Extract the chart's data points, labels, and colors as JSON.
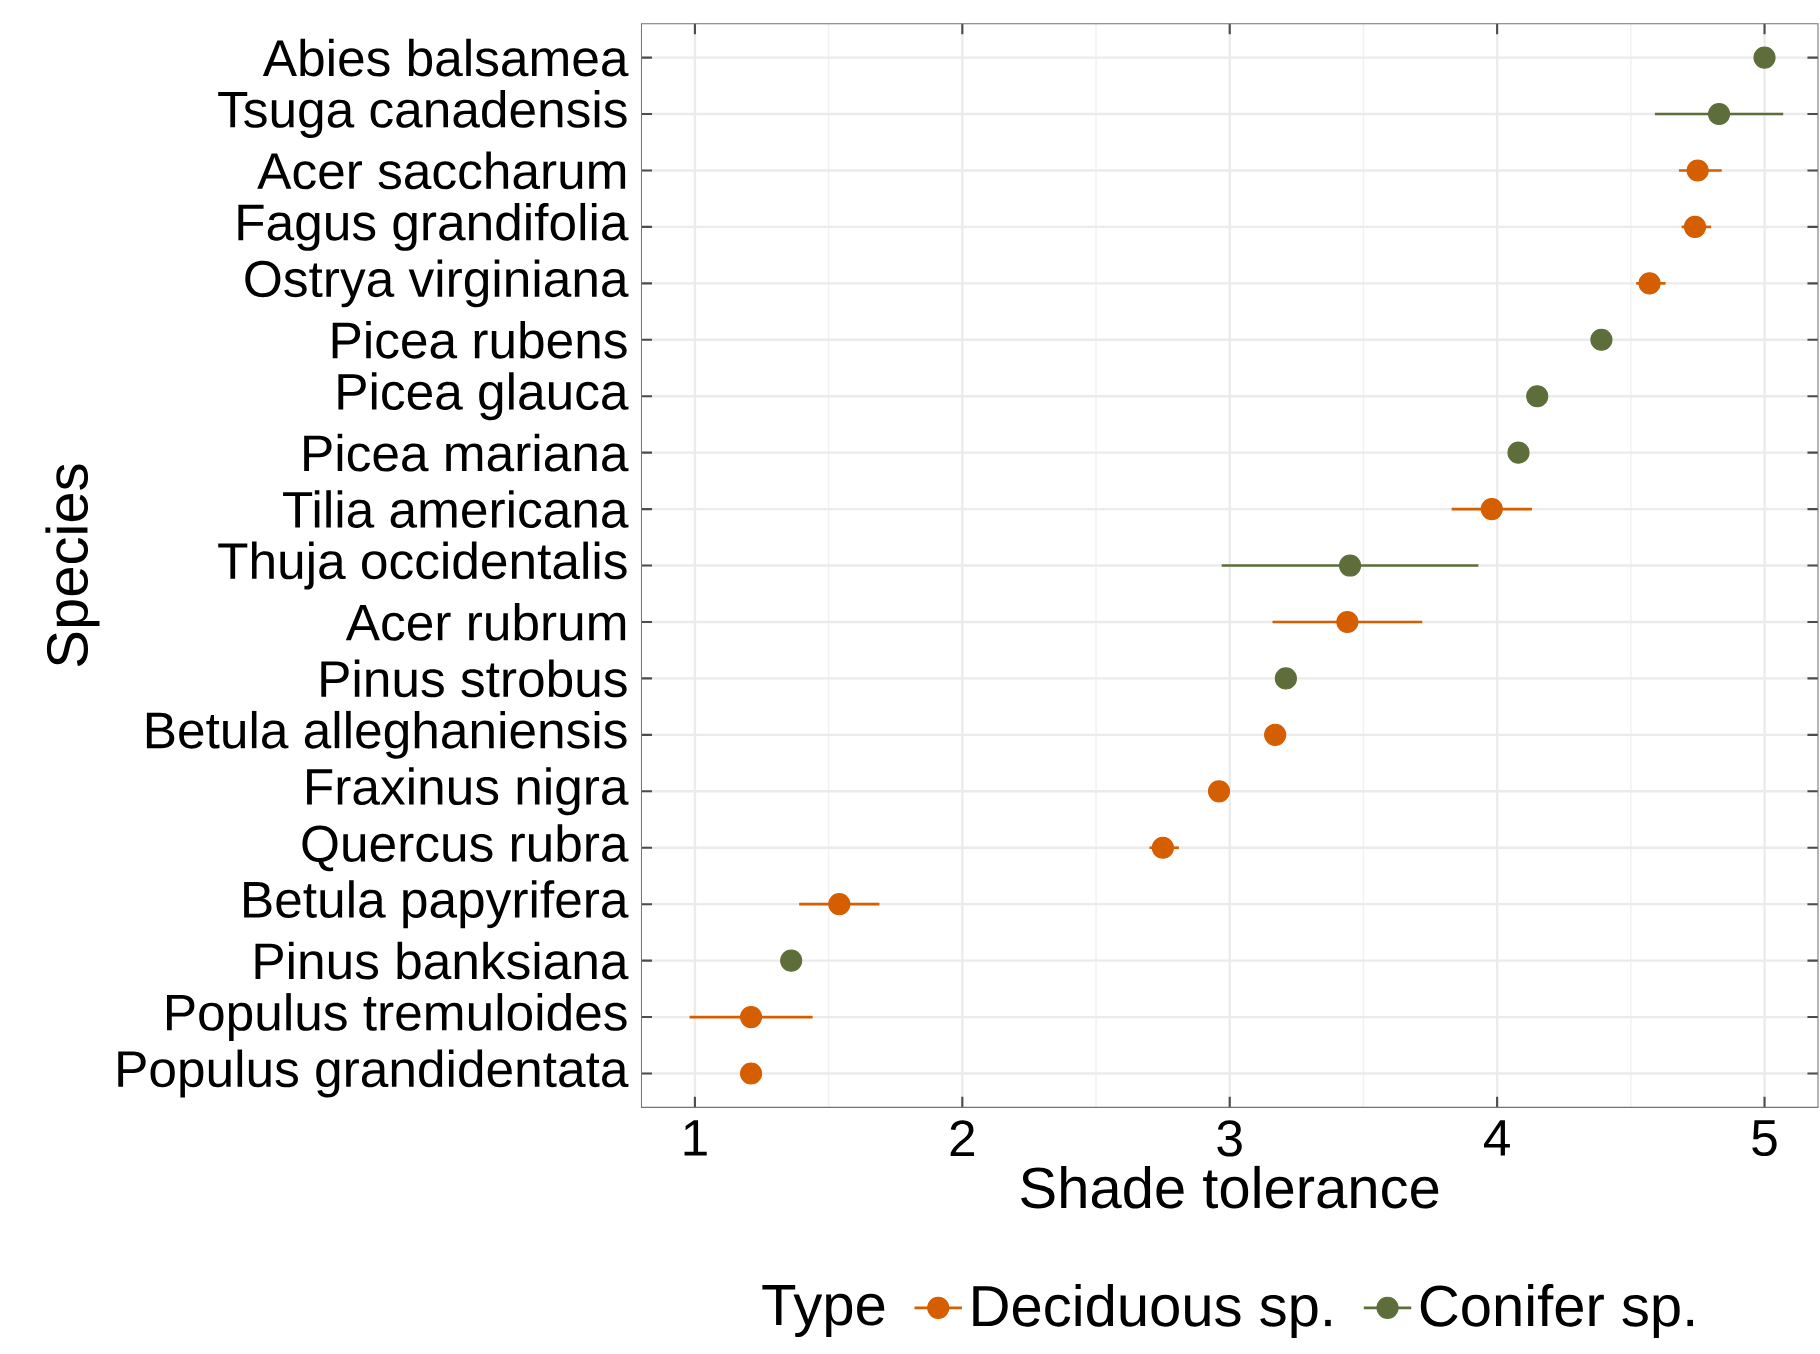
{
  "chart_data": {
    "type": "scatter",
    "orientation": "horizontal",
    "xlabel": "Shade tolerance",
    "ylabel": "Species",
    "legend_title": "Type",
    "legend": "bottom",
    "grid": true,
    "marker": "circle",
    "categories": [
      "Abies balsamea",
      "Tsuga canadensis",
      "Acer saccharum",
      "Fagus grandifolia",
      "Ostrya virginiana",
      "Picea rubens",
      "Picea glauca",
      "Picea mariana",
      "Tilia americana",
      "Thuja occidentalis",
      "Acer rubrum",
      "Pinus strobus",
      "Betula alleghaniensis",
      "Fraxinus nigra",
      "Quercus rubra",
      "Betula papyrifera",
      "Pinus banksiana",
      "Populus tremuloides",
      "Populus grandidentata"
    ],
    "xlim": [
      0.8,
      5.2
    ],
    "xticks": [
      1,
      2,
      3,
      4,
      5
    ],
    "series": [
      {
        "name": "Deciduous sp.",
        "color": "#d55e00",
        "values": [
          null,
          null,
          4.75,
          4.74,
          4.57,
          null,
          null,
          null,
          3.98,
          null,
          3.44,
          null,
          3.17,
          2.96,
          2.75,
          1.54,
          null,
          1.21,
          1.21
        ],
        "errors": [
          null,
          null,
          [
            4.68,
            4.84
          ],
          [
            4.69,
            4.8
          ],
          [
            4.52,
            4.63
          ],
          null,
          null,
          null,
          [
            3.83,
            4.13
          ],
          null,
          [
            3.16,
            3.72
          ],
          null,
          null,
          null,
          [
            2.7,
            2.81
          ],
          [
            1.39,
            1.69
          ],
          null,
          [
            0.98,
            1.44
          ],
          null
        ]
      },
      {
        "name": "Conifer sp.",
        "color": "#5e6e3a",
        "values": [
          5.0,
          4.83,
          null,
          null,
          null,
          4.39,
          4.15,
          4.08,
          null,
          3.45,
          null,
          3.21,
          null,
          null,
          null,
          null,
          1.36,
          null,
          null
        ],
        "errors": [
          null,
          [
            4.59,
            5.07
          ],
          null,
          null,
          null,
          null,
          null,
          null,
          null,
          [
            2.97,
            3.93
          ],
          null,
          null,
          null,
          null,
          null,
          null,
          null,
          null,
          null
        ]
      }
    ]
  }
}
